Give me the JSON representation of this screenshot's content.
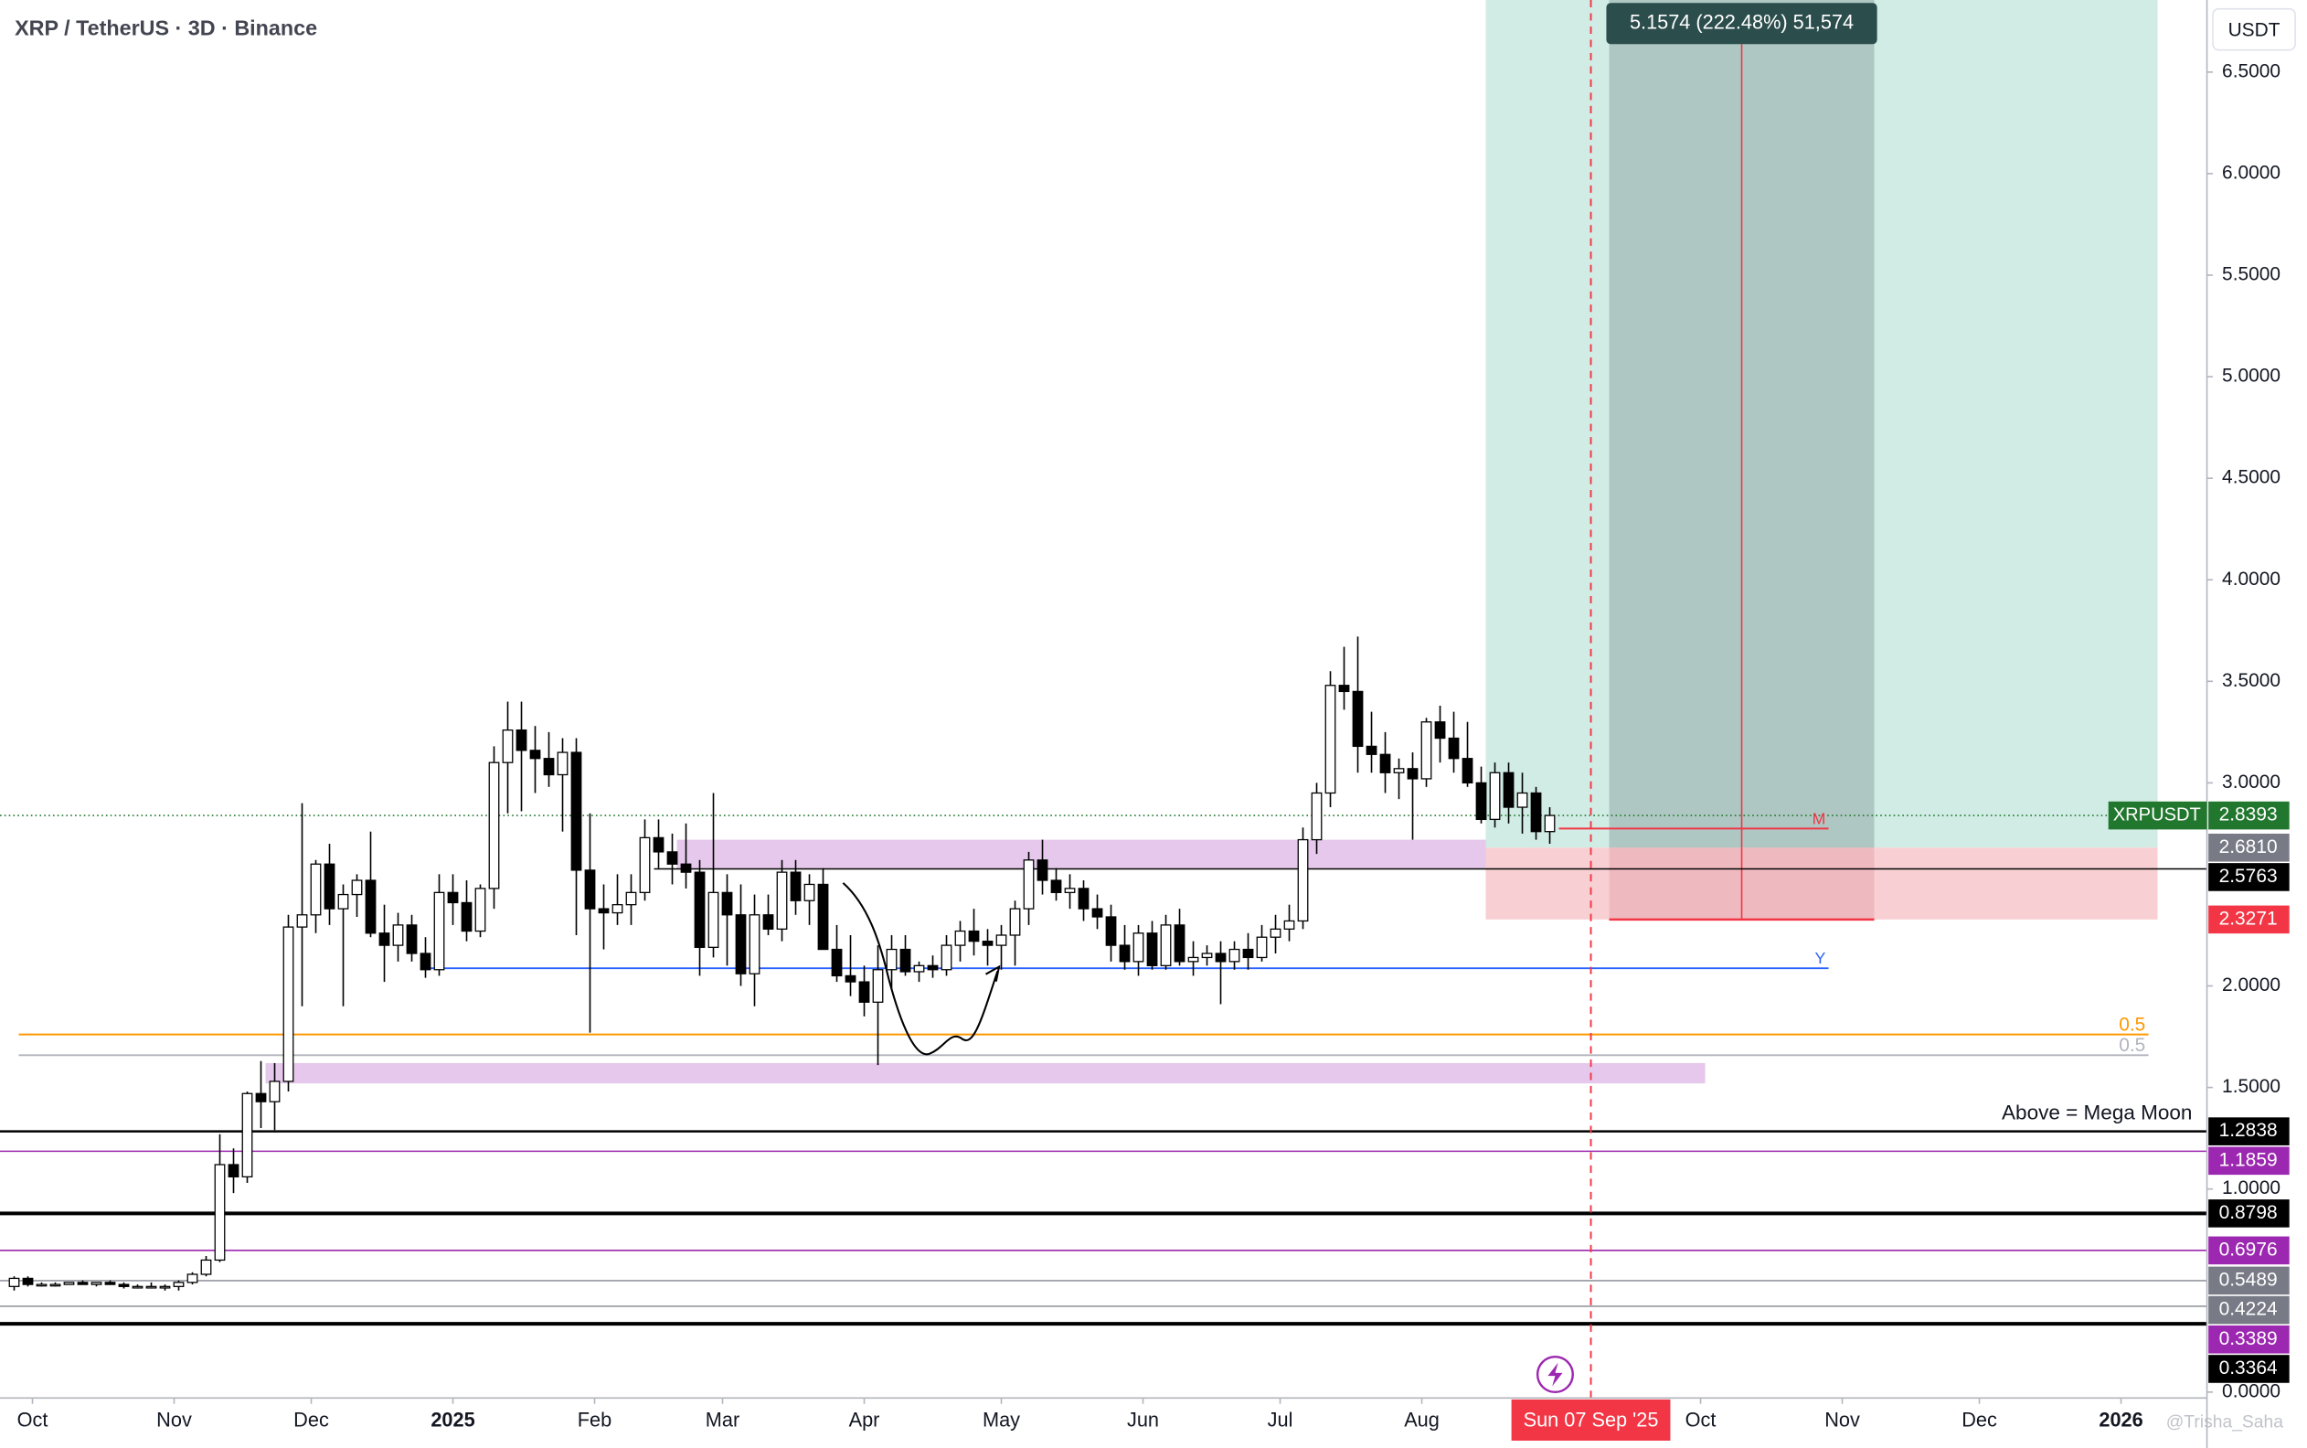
{
  "chart_data": {
    "type": "candlestick",
    "title": "XRP / TetherUS · 3D · Binance",
    "axis_unit": "USDT",
    "watermark": "@Trisha_Saha",
    "xlim": [
      -7.1,
      475.8
    ],
    "xticks": [
      {
        "value": 0,
        "label": "Oct"
      },
      {
        "value": 31,
        "label": "Nov"
      },
      {
        "value": 61,
        "label": "Dec"
      },
      {
        "value": 92,
        "label": "2025"
      },
      {
        "value": 123,
        "label": "Feb"
      },
      {
        "value": 151,
        "label": "Mar"
      },
      {
        "value": 182,
        "label": "Apr"
      },
      {
        "value": 212,
        "label": "May"
      },
      {
        "value": 243,
        "label": "Jun"
      },
      {
        "value": 273,
        "label": "Jul"
      },
      {
        "value": 304,
        "label": "Aug"
      },
      {
        "value": 365,
        "label": "Oct"
      },
      {
        "value": 396,
        "label": "Nov"
      },
      {
        "value": 426,
        "label": "Dec"
      },
      {
        "value": 457,
        "label": "2026"
      }
    ],
    "ylim": [
      -0.029,
      6.855
    ],
    "yticks": [
      {
        "value": 0,
        "label": "0.0000"
      },
      {
        "value": 1,
        "label": "1.0000"
      },
      {
        "value": 1.5,
        "label": "1.5000"
      },
      {
        "value": 2,
        "label": "2.0000"
      },
      {
        "value": 3,
        "label": "3.0000"
      },
      {
        "value": 3.5,
        "label": "3.5000"
      },
      {
        "value": 4,
        "label": "4.0000"
      },
      {
        "value": 4.5,
        "label": "4.5000"
      },
      {
        "value": 5,
        "label": "5.0000"
      },
      {
        "value": 5.5,
        "label": "5.5000"
      },
      {
        "value": 6,
        "label": "6.0000"
      },
      {
        "value": 6.5,
        "label": "6.5000"
      }
    ],
    "grid": false,
    "series": [
      {
        "name": "XRPUSDT",
        "up_color": "#ffffff",
        "down_color": "#000000",
        "price_color": "#22772e",
        "x": [
          -4,
          -1,
          2,
          5,
          8,
          11,
          14,
          17,
          20,
          23,
          26,
          29,
          32,
          35,
          38,
          41,
          44,
          47,
          50,
          53,
          56,
          59,
          62,
          65,
          68,
          71,
          74,
          77,
          80,
          83,
          86,
          89,
          92,
          95,
          98,
          101,
          104,
          107,
          110,
          113,
          116,
          119,
          122,
          125,
          128,
          131,
          134,
          137,
          140,
          143,
          146,
          149,
          152,
          155,
          158,
          161,
          164,
          167,
          170,
          173,
          176,
          179,
          182,
          185,
          188,
          191,
          194,
          197,
          200,
          203,
          206,
          209,
          212,
          215,
          218,
          221,
          224,
          227,
          230,
          233,
          236,
          239,
          242,
          245,
          248,
          251,
          254,
          257,
          260,
          263,
          266,
          269,
          272,
          275,
          278,
          281,
          284,
          287,
          290,
          293,
          296,
          299,
          302,
          305,
          308,
          311,
          314,
          317,
          320,
          323,
          326,
          329,
          332
        ],
        "open": [
          0.52,
          0.56,
          0.53,
          0.53,
          0.53,
          0.54,
          0.53,
          0.54,
          0.53,
          0.52,
          0.52,
          0.52,
          0.52,
          0.54,
          0.58,
          0.65,
          1.12,
          1.06,
          1.47,
          1.43,
          1.53,
          2.29,
          2.35,
          2.6,
          2.38,
          2.45,
          2.52,
          2.26,
          2.2,
          2.3,
          2.16,
          2.08,
          2.46,
          2.41,
          2.27,
          2.48,
          3.1,
          3.26,
          3.16,
          3.12,
          3.04,
          3.15,
          2.57,
          2.38,
          2.36,
          2.4,
          2.46,
          2.73,
          2.66,
          2.6,
          2.56,
          2.19,
          2.46,
          2.35,
          2.06,
          2.35,
          2.28,
          2.56,
          2.42,
          2.5,
          2.18,
          2.05,
          2.02,
          1.92,
          2.08,
          2.18,
          2.07,
          2.1,
          2.08,
          2.2,
          2.27,
          2.22,
          2.2,
          2.25,
          2.38,
          2.62,
          2.52,
          2.46,
          2.48,
          2.38,
          2.34,
          2.2,
          2.12,
          2.26,
          2.1,
          2.3,
          2.12,
          2.14,
          2.16,
          2.12,
          2.18,
          2.14,
          2.24,
          2.28,
          2.32,
          2.72,
          2.95,
          3.48,
          3.45,
          3.18,
          3.14,
          3.05,
          3.07,
          3.02,
          3.3,
          3.22,
          3.12,
          3.0,
          2.82,
          3.05,
          2.88,
          2.95,
          2.76
        ],
        "high": [
          0.57,
          0.57,
          0.54,
          0.54,
          0.54,
          0.55,
          0.54,
          0.55,
          0.54,
          0.53,
          0.54,
          0.53,
          0.55,
          0.59,
          0.67,
          1.27,
          1.2,
          1.48,
          1.63,
          1.62,
          2.35,
          2.9,
          2.62,
          2.7,
          2.5,
          2.55,
          2.76,
          2.4,
          2.36,
          2.35,
          2.24,
          2.55,
          2.55,
          2.52,
          2.5,
          3.18,
          3.4,
          3.4,
          3.28,
          3.25,
          3.22,
          3.22,
          2.85,
          2.5,
          2.55,
          2.55,
          2.82,
          2.82,
          2.75,
          2.8,
          2.62,
          2.95,
          2.55,
          2.5,
          2.45,
          2.45,
          2.62,
          2.62,
          2.55,
          2.58,
          2.3,
          2.25,
          2.1,
          2.2,
          2.25,
          2.25,
          2.12,
          2.15,
          2.25,
          2.32,
          2.38,
          2.28,
          2.3,
          2.42,
          2.66,
          2.72,
          2.58,
          2.55,
          2.52,
          2.45,
          2.4,
          2.3,
          2.3,
          2.32,
          2.35,
          2.38,
          2.22,
          2.2,
          2.22,
          2.22,
          2.26,
          2.3,
          2.35,
          2.4,
          2.78,
          3.0,
          3.55,
          3.67,
          3.72,
          3.35,
          3.25,
          3.12,
          3.15,
          3.32,
          3.38,
          3.35,
          3.3,
          3.08,
          3.1,
          3.1,
          3.05,
          2.98,
          2.88
        ],
        "low": [
          0.5,
          0.52,
          0.52,
          0.52,
          0.53,
          0.53,
          0.52,
          0.53,
          0.51,
          0.51,
          0.51,
          0.5,
          0.5,
          0.53,
          0.57,
          0.64,
          0.98,
          1.03,
          1.3,
          1.29,
          1.48,
          1.9,
          2.26,
          2.3,
          1.9,
          2.34,
          2.24,
          2.02,
          2.12,
          2.12,
          2.04,
          2.05,
          2.3,
          2.22,
          2.24,
          2.38,
          2.85,
          2.86,
          2.95,
          2.98,
          2.76,
          2.25,
          1.77,
          2.18,
          2.3,
          2.3,
          2.42,
          2.58,
          2.5,
          2.48,
          2.05,
          2.14,
          2.1,
          2.0,
          1.9,
          2.25,
          2.22,
          2.35,
          2.3,
          2.18,
          2.02,
          1.95,
          1.85,
          1.61,
          1.98,
          2.05,
          2.02,
          2.04,
          2.05,
          2.12,
          2.15,
          2.1,
          2.08,
          2.1,
          2.3,
          2.45,
          2.42,
          2.38,
          2.32,
          2.28,
          2.12,
          2.08,
          2.05,
          2.08,
          2.08,
          2.1,
          2.05,
          2.1,
          1.91,
          2.08,
          2.08,
          2.12,
          2.16,
          2.22,
          2.28,
          2.65,
          2.88,
          3.36,
          3.05,
          3.05,
          2.95,
          2.92,
          2.72,
          2.98,
          3.1,
          3.05,
          2.98,
          2.8,
          2.78,
          2.8,
          2.75,
          2.72,
          2.7
        ],
        "close": [
          0.56,
          0.53,
          0.53,
          0.53,
          0.54,
          0.53,
          0.54,
          0.53,
          0.52,
          0.52,
          0.52,
          0.52,
          0.54,
          0.58,
          0.65,
          1.12,
          1.06,
          1.47,
          1.43,
          1.53,
          2.29,
          2.35,
          2.6,
          2.38,
          2.45,
          2.52,
          2.26,
          2.2,
          2.3,
          2.16,
          2.08,
          2.46,
          2.41,
          2.27,
          2.48,
          3.1,
          3.26,
          3.16,
          3.12,
          3.04,
          3.15,
          2.57,
          2.38,
          2.36,
          2.4,
          2.46,
          2.73,
          2.66,
          2.6,
          2.56,
          2.19,
          2.46,
          2.35,
          2.06,
          2.35,
          2.28,
          2.56,
          2.42,
          2.5,
          2.18,
          2.05,
          2.02,
          1.92,
          2.08,
          2.18,
          2.07,
          2.1,
          2.08,
          2.2,
          2.27,
          2.22,
          2.2,
          2.25,
          2.38,
          2.62,
          2.52,
          2.46,
          2.48,
          2.38,
          2.34,
          2.2,
          2.12,
          2.26,
          2.1,
          2.3,
          2.12,
          2.14,
          2.16,
          2.12,
          2.18,
          2.14,
          2.24,
          2.28,
          2.32,
          2.72,
          2.95,
          3.48,
          3.45,
          3.18,
          3.14,
          3.05,
          3.07,
          3.02,
          3.3,
          3.22,
          3.12,
          3.0,
          2.82,
          3.05,
          2.88,
          2.95,
          2.76,
          2.8393
        ]
      }
    ],
    "zones": [
      {
        "low": 2.58,
        "high": 2.72,
        "from": 141,
        "to": 318,
        "color": "#e1bee7"
      },
      {
        "low": 1.52,
        "high": 1.62,
        "from": 51,
        "to": 366,
        "color": "#e1bee7"
      }
    ],
    "position": {
      "entry": 2.681,
      "stop": 2.3271,
      "from": 318,
      "to": 465,
      "inner_from": 345,
      "inner_to": 403,
      "label": "5.1574 (222.48%) 51,574",
      "profit_color": "#d1ece5",
      "loss_color": "#f8d0d3"
    },
    "annotated_lines": [
      {
        "value": 1.761,
        "label": "0.5",
        "color": "#ff9800",
        "from": -3,
        "to": 463
      },
      {
        "value": 1.659,
        "label": "0.5",
        "color": "#b2b5be",
        "from": -3,
        "to": 463
      },
      {
        "value": 2.087,
        "label": "Y",
        "color": "#2962ff",
        "from": 86,
        "to": 393
      },
      {
        "value": 2.775,
        "label": "M",
        "color": "#f23645",
        "from": 334,
        "to": 393
      }
    ],
    "levels": [
      {
        "value": 2.681,
        "label": "2.6810",
        "tag_color": "#787b86"
      },
      {
        "value": 2.5763,
        "label": "2.5763",
        "tag_color": "#000000",
        "line_color": "#000000",
        "line_width": 1,
        "from": 136
      },
      {
        "value": 2.3271,
        "label": "2.3271",
        "tag_color": "#f23645"
      },
      {
        "value": 1.2838,
        "label": "1.2838",
        "tag_color": "#000000",
        "line_color": "#000000",
        "line_width": 1.5,
        "note": "Above = Mega Moon"
      },
      {
        "value": 1.1859,
        "label": "1.1859",
        "tag_color": "#9c27b0",
        "line_color": "#9c27b0",
        "line_width": 1
      },
      {
        "value": 0.8798,
        "label": "0.8798",
        "tag_color": "#000000",
        "line_color": "#000000",
        "line_width": 2.5
      },
      {
        "value": 0.6976,
        "label": "0.6976",
        "tag_color": "#9c27b0",
        "line_color": "#9c27b0",
        "line_width": 1
      },
      {
        "value": 0.5489,
        "label": "0.5489",
        "tag_color": "#787b86",
        "line_color": "#9598a1",
        "line_width": 1
      },
      {
        "value": 0.4224,
        "label": "0.4224",
        "tag_color": "#787b86",
        "line_color": "#9598a1",
        "line_width": 1
      },
      {
        "value": 0.3389,
        "label": "0.3389",
        "tag_color": "#9c27b0",
        "line_color": "#9c27b0",
        "line_width": 1
      },
      {
        "value": 0.3364,
        "label": "0.3364",
        "tag_color": "#000000",
        "line_color": "#000000",
        "line_width": 2.5
      }
    ],
    "crosshair": {
      "x": 341,
      "label": "Sun 07 Sep '25",
      "color": "#f23645"
    }
  }
}
